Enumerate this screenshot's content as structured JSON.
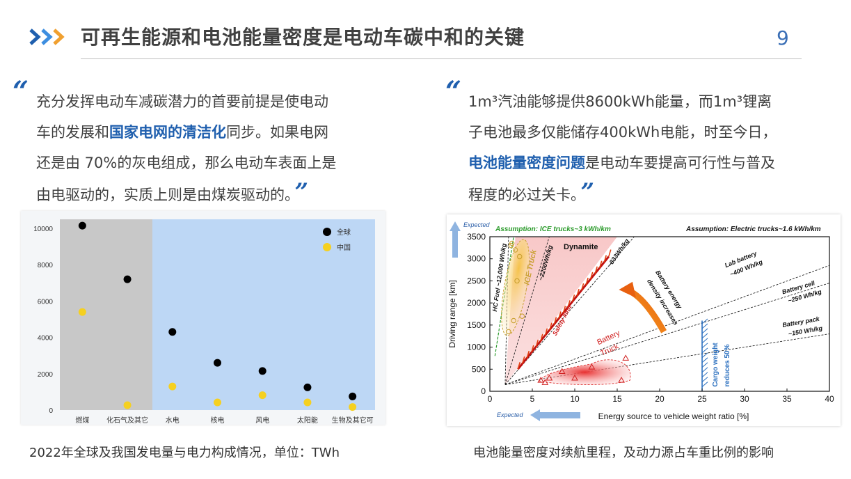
{
  "header": {
    "title": "可再生能源和电池能量密度是电动车碳中和的关键",
    "page_number": "9",
    "accent_colors": [
      "#1f5fae",
      "#3d8ee0",
      "#f0a030"
    ]
  },
  "left_quote": {
    "open_mark": "“",
    "close_mark": "”",
    "line1": "充分发挥电动车减碳潜力的首要前提是使电动",
    "line2_a": "车的发展和",
    "line2_hl": "国家电网的清洁化",
    "line2_b": "同步。如果电网",
    "line3": "还是由 70%的灰电组成，那么电动车表面上是",
    "line4": "由电驱动的，实质上则是由煤炭驱动的。"
  },
  "right_quote": {
    "open_mark": "“",
    "close_mark": "”",
    "line1": "1m³汽油能够提供8600kWh能量，而1m³锂离",
    "line2": "子电池最多仅能储存400kWh电能，时至今日，",
    "line3_hl": "电池能量密度问题",
    "line3_b": "是电动车要提高可行性与普及",
    "line4": "程度的必过关卡。"
  },
  "chart_data": [
    {
      "type": "scatter",
      "title": "",
      "categories": [
        "燃煤",
        "化石气及其它",
        "水电",
        "核电",
        "风电",
        "太阳能",
        "生物及其它可"
      ],
      "series": [
        {
          "name": "全球",
          "color": "#000000",
          "values": [
            10150,
            7200,
            4300,
            2600,
            2150,
            1250,
            750
          ]
        },
        {
          "name": "中国",
          "color": "#f5d020",
          "values": [
            5400,
            270,
            1300,
            420,
            820,
            420,
            170
          ]
        }
      ],
      "yticks": [
        0,
        2000,
        4000,
        6000,
        8000,
        10000
      ],
      "ylim": [
        0,
        10500
      ],
      "legend_position": "top-right",
      "shaded_fossil_color": "#c8c8c8",
      "shaded_clean_color": "#bdd7f5"
    },
    {
      "type": "scatter",
      "title": "",
      "xlabel": "Energy source to vehicle weight ratio [%]",
      "ylabel": "Driving range [km]",
      "xticks": [
        0,
        5,
        10,
        15,
        20,
        25,
        30,
        35,
        40
      ],
      "yticks": [
        0,
        500,
        1000,
        1500,
        2000,
        2500,
        3000,
        3500
      ],
      "xlim": [
        0,
        40
      ],
      "ylim": [
        0,
        3500
      ],
      "series": [
        {
          "name": "ICE Truck",
          "x": [
            2.5,
            3,
            3.5,
            3.2,
            2.8,
            2.2,
            3.8,
            2.6
          ],
          "y": [
            3300,
            3200,
            3050,
            2500,
            1600,
            1350,
            1700,
            3350
          ]
        },
        {
          "name": "Battery Truck",
          "x": [
            6,
            7,
            8.5,
            10,
            12,
            15.5,
            16,
            6.5
          ],
          "y": [
            250,
            300,
            450,
            300,
            550,
            250,
            750,
            200
          ]
        }
      ],
      "annotations": {
        "ice_assumption": "Assumption: ICE trucks~3 kWh/km",
        "ev_assumption": "Assumption: Electric trucks~1.6 kWh/km",
        "dynamite": "Dynamite",
        "hc_fuel": "HC Fuel ~12,000 Wh/kg",
        "ice_truck": "ICE Truck",
        "d2200": "~2200Wh/kg",
        "d833": "~833Wh/kg",
        "safety": "Safety limit",
        "battery_truck_1": "Battery",
        "battery_truck_2": "Truck",
        "density_1": "Battery energy",
        "density_2": "density increases",
        "lab_1": "Lab battery",
        "lab_2": "~400 Wh/kg",
        "cell_1": "Battery cell",
        "cell_2": "~250 Wh/kg",
        "pack_1": "Battery pack",
        "pack_2": "~150 Wh/kg",
        "cargo_1": "Cargo weight",
        "cargo_2": "reduces 50%",
        "expected_up": "Expected",
        "expected_left": "Expected"
      }
    }
  ],
  "captions": {
    "left": "2022年全球及我国发电量与电力构成情况，单位：TWh",
    "right": "电池能量密度对续航里程，及动力源占车重比例的影响"
  }
}
